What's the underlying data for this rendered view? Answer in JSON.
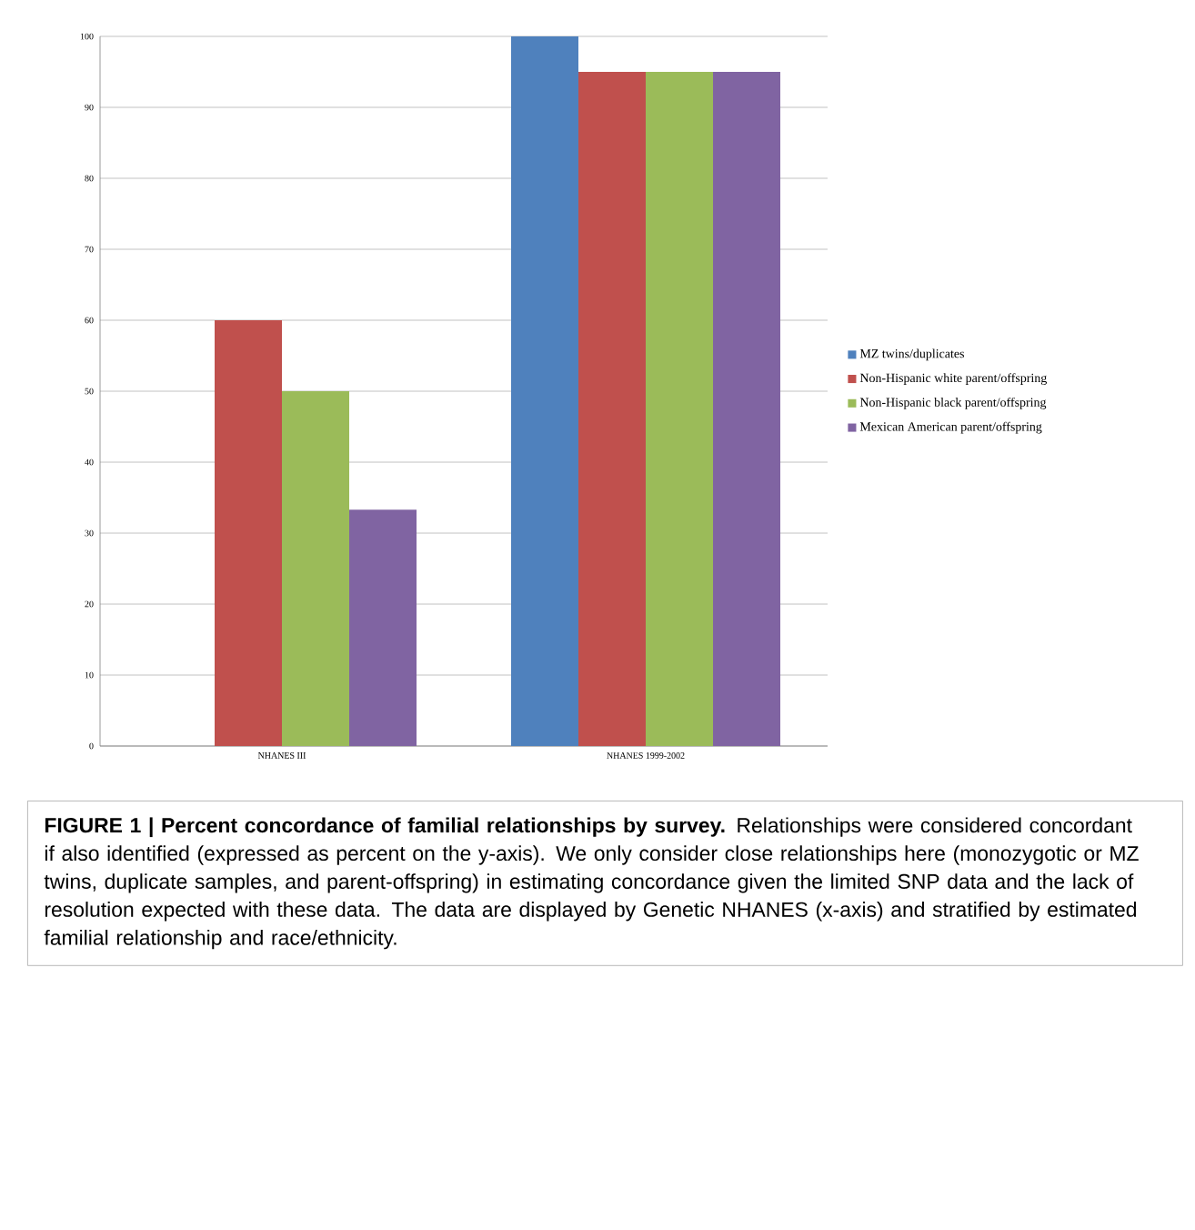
{
  "chart_data": {
    "type": "bar",
    "title": "FIGURE 1 | Percent concordance of familial relationships by survey.",
    "annotations": [
      "Relationships were considered concordant if also identified (expressed as percent on the y-axis). We only consider close relationships here (monozygotic or MZ twins, duplicate samples, and parent-offspring) in estimating concordance given the limited SNP data and the lack of resolution expected with these data. The data are displayed by Genetic NHANES (x-axis) and stratified by estimated familial relationship and race/ethnicity."
    ],
    "categories": [
      "NHANES III",
      "NHANES 1999-2002"
    ],
    "series": [
      {
        "name": "MZ twins/duplicates",
        "color": "#4f81bd",
        "values": [
          0,
          100
        ]
      },
      {
        "name": "Non-Hispanic white parent/offspring",
        "color": "#c0504d",
        "values": [
          60,
          95
        ]
      },
      {
        "name": "Non-Hispanic black parent/offspring",
        "color": "#9bbb59",
        "values": [
          50,
          95
        ]
      },
      {
        "name": "Mexican American parent/offspring",
        "color": "#8064a2",
        "values": [
          33.3,
          95
        ]
      }
    ],
    "ylim": [
      0,
      100
    ],
    "yticks": [
      0,
      10,
      20,
      30,
      40,
      50,
      60,
      70,
      80,
      90,
      100
    ],
    "grid": "y",
    "legend": "right"
  }
}
